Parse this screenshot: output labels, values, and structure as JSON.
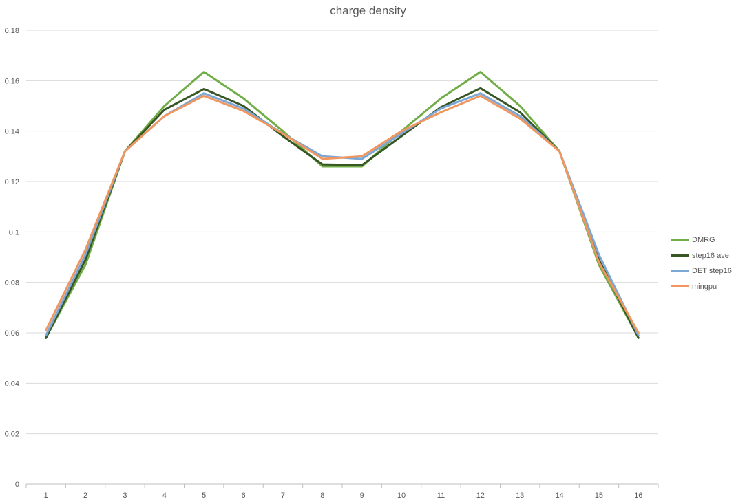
{
  "chart_data": {
    "type": "line",
    "title": "charge density",
    "xlabel": "",
    "ylabel": "",
    "categories": [
      "1",
      "2",
      "3",
      "4",
      "5",
      "6",
      "7",
      "8",
      "9",
      "10",
      "11",
      "12",
      "13",
      "14",
      "15",
      "16"
    ],
    "ylim": [
      0,
      0.18
    ],
    "yticks": [
      "0",
      "0.02",
      "0.04",
      "0.06",
      "0.08",
      "0.1",
      "0.12",
      "0.14",
      "0.16",
      "0.18"
    ],
    "grid": true,
    "legend_position": "right",
    "series": [
      {
        "name": "DMRG",
        "color": "#70AD47",
        "values": [
          0.058,
          0.087,
          0.132,
          0.15,
          0.1635,
          0.153,
          0.14,
          0.126,
          0.126,
          0.14,
          0.153,
          0.1635,
          0.15,
          0.132,
          0.087,
          0.058
        ]
      },
      {
        "name": "step16 ave",
        "color": "#375623",
        "values": [
          0.058,
          0.089,
          0.132,
          0.1485,
          0.1567,
          0.15,
          0.138,
          0.1268,
          0.1265,
          0.138,
          0.1495,
          0.157,
          0.1475,
          0.132,
          0.089,
          0.058
        ]
      },
      {
        "name": "DET step16",
        "color": "#7BA7D7",
        "values": [
          0.059,
          0.091,
          0.132,
          0.146,
          0.155,
          0.149,
          0.139,
          0.13,
          0.129,
          0.139,
          0.149,
          0.155,
          0.146,
          0.132,
          0.091,
          0.059
        ]
      },
      {
        "name": "mingpu",
        "color": "#F0965E",
        "values": [
          0.061,
          0.093,
          0.132,
          0.146,
          0.154,
          0.148,
          0.139,
          0.129,
          0.13,
          0.14,
          0.1475,
          0.154,
          0.145,
          0.132,
          0.088,
          0.06
        ]
      }
    ]
  }
}
